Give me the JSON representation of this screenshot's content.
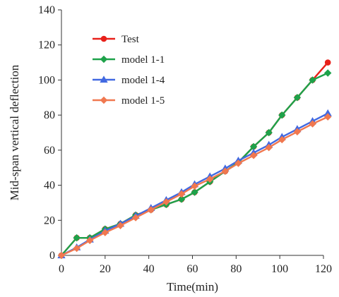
{
  "chart_data": {
    "type": "line",
    "title": "",
    "xlabel": "Time(min)",
    "ylabel": "Mid-span vertical deflection",
    "xlim": [
      0,
      120
    ],
    "ylim": [
      0,
      140
    ],
    "xticks": [
      0,
      20,
      40,
      60,
      80,
      100,
      120
    ],
    "yticks": [
      0,
      20,
      40,
      60,
      80,
      100,
      120,
      140
    ],
    "grid": false,
    "legend_position": "upper-left",
    "series": [
      {
        "name": "Test",
        "color": "#e8211a",
        "marker": "circle",
        "x": [
          0,
          7,
          13,
          20,
          27,
          34,
          41,
          48,
          55,
          61,
          68,
          75,
          81,
          88,
          95,
          101,
          108,
          115,
          122
        ],
        "y": [
          0,
          10,
          10,
          15,
          18,
          23,
          26,
          29,
          32,
          36,
          42,
          48,
          53,
          62,
          70,
          80,
          90,
          100,
          110
        ]
      },
      {
        "name": "model 1-1",
        "color": "#1ea24a",
        "marker": "diamond",
        "x": [
          0,
          7,
          13,
          20,
          27,
          34,
          41,
          48,
          55,
          61,
          68,
          75,
          81,
          88,
          95,
          101,
          108,
          115,
          122
        ],
        "y": [
          0,
          10,
          10,
          15,
          18,
          23,
          26,
          29,
          32,
          36,
          42,
          48,
          53,
          62,
          70,
          80,
          90,
          100,
          104
        ]
      },
      {
        "name": "model 1-4",
        "color": "#4169e1",
        "marker": "triangle",
        "x": [
          0,
          7,
          13,
          20,
          27,
          34,
          41,
          48,
          55,
          61,
          68,
          75,
          81,
          88,
          95,
          101,
          108,
          115,
          122
        ],
        "y": [
          0,
          4.5,
          9,
          14,
          18,
          22.5,
          27,
          31.5,
          36,
          40.5,
          45,
          49.5,
          54,
          58.5,
          63,
          67.5,
          72,
          76.5,
          81
        ]
      },
      {
        "name": "model 1-5",
        "color": "#f07850",
        "marker": "diamond",
        "x": [
          0,
          7,
          13,
          20,
          27,
          34,
          41,
          48,
          55,
          61,
          68,
          75,
          81,
          88,
          95,
          101,
          108,
          115,
          122
        ],
        "y": [
          0,
          4,
          8.5,
          13,
          17,
          21.5,
          26,
          30.5,
          35,
          39.5,
          43.5,
          48,
          52.5,
          57,
          61.5,
          66,
          70.5,
          75,
          79
        ]
      }
    ]
  }
}
